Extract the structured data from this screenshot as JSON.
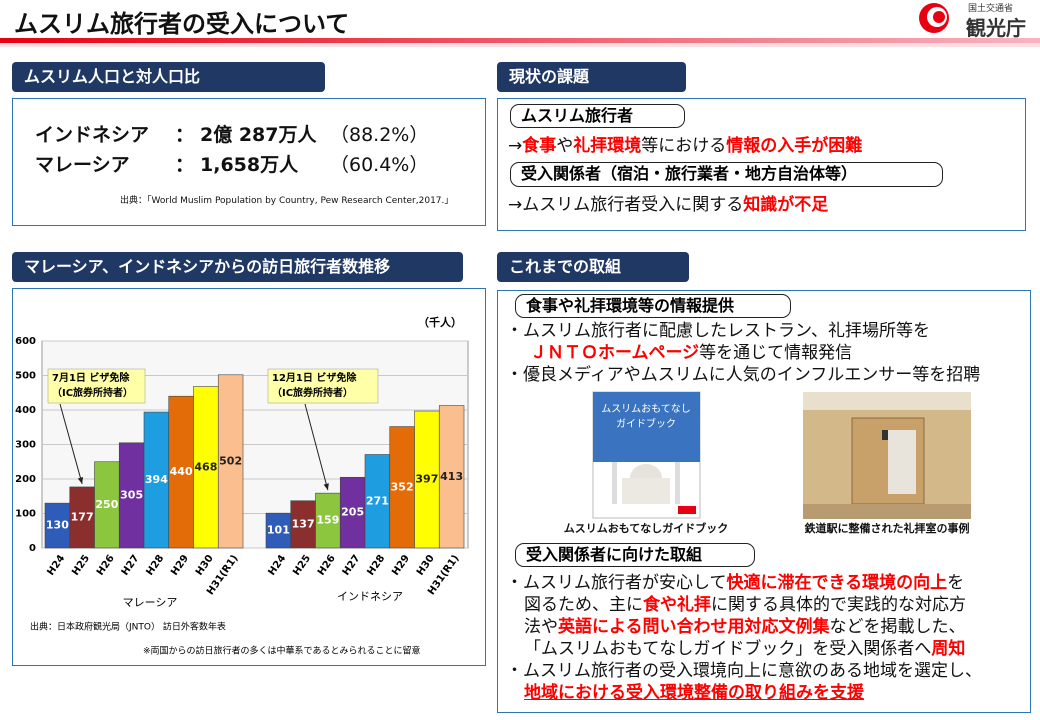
{
  "header": {
    "title": "ムスリム旅行者の受入について",
    "logo_top": "国土交通省",
    "logo_main": "観光庁"
  },
  "population": {
    "heading": "ムスリム人口と対人口比",
    "rows": [
      [
        "インドネシア",
        "：",
        "2億 287万人",
        "（88.2%）"
      ],
      [
        "マレーシア",
        "：",
        "1,658万人",
        "（60.4%）"
      ]
    ],
    "source": "出典：「World Muslim Population  by Country, Pew Research Center,2017.」"
  },
  "issues": {
    "heading": "現状の課題",
    "groups": [
      {
        "label": "ムスリム旅行者",
        "line": [
          {
            "text": "→"
          },
          {
            "text": "食事",
            "color": "#ff0000"
          },
          {
            "text": "や"
          },
          {
            "text": "礼拝環境",
            "color": "#ff0000"
          },
          {
            "text": "等における"
          },
          {
            "text": "情報の入手が困難",
            "color": "#ff0000"
          }
        ]
      },
      {
        "label": "受入関係者（宿泊・旅行業者・地方自治体等）",
        "line": [
          {
            "text": "→ムスリム旅行者受入に関する"
          },
          {
            "text": "知識が不足",
            "color": "#ff0000"
          }
        ]
      }
    ]
  },
  "chart_data": {
    "type": "bar",
    "heading": "マレーシア、インドネシアからの訪日旅行者数推移",
    "unit": "（千人）",
    "categories": [
      "H24",
      "H25",
      "H26",
      "H27",
      "H28",
      "H29",
      "H30",
      "H31(R1)"
    ],
    "colors": [
      "#2e5cb8",
      "#8b2e2e",
      "#8cc63f",
      "#7030a0",
      "#1e9de0",
      "#e36c09",
      "#ffff00",
      "#fbbf8f"
    ],
    "series": [
      {
        "name": "マレーシア",
        "values": [
          130,
          177,
          250,
          305,
          394,
          440,
          468,
          502
        ]
      },
      {
        "name": "インドネシア",
        "values": [
          101,
          137,
          159,
          205,
          271,
          352,
          397,
          413
        ]
      }
    ],
    "ylim": [
      0,
      600
    ],
    "yticks": [
      0,
      100,
      200,
      300,
      400,
      500,
      600
    ],
    "grid": true,
    "annotations": [
      {
        "lines": [
          "7月1日 ビザ免除",
          "（IC旅券所持者）"
        ]
      },
      {
        "lines": [
          "12月1日 ビザ免除",
          "（IC旅券所持者）"
        ]
      }
    ],
    "source": "出典：日本政府観光局（JNTO） 訪日外客数年表",
    "note": "※両国からの訪日旅行者の多くは中華系であるとみられることに留意"
  },
  "efforts": {
    "heading": "これまでの取組",
    "groups": [
      {
        "label": "食事や礼拝環境等の情報提供",
        "items": [
          {
            "lines": [
              [
                {
                  "text": "・ムスリム旅行者に配慮したレストラン、礼拝場所等を"
                }
              ],
              [
                {
                  "text": "ＪＮＴＯホームページ",
                  "color": "#ff0000"
                },
                {
                  "text": "等を通じて情報発信"
                }
              ]
            ]
          },
          {
            "lines": [
              [
                {
                  "text": "・優良メディアやムスリムに人気のインフルエンサー等を招聘"
                }
              ]
            ]
          }
        ]
      },
      {
        "label": "受入関係者に向けた取組",
        "items": [
          {
            "lines": [
              [
                {
                  "text": "・ムスリム旅行者が安心して"
                },
                {
                  "text": "快適に滞在できる環境の向上",
                  "color": "#ff0000"
                },
                {
                  "text": "を"
                }
              ],
              [
                {
                  "text": "図るため、主に"
                },
                {
                  "text": "食や礼拝",
                  "color": "#ff0000"
                },
                {
                  "text": "に関する具体的で実践的な対応方"
                }
              ],
              [
                {
                  "text": "法や"
                },
                {
                  "text": "英語による問い合わせ用対応文例集",
                  "color": "#ff0000"
                },
                {
                  "text": "などを掲載した、"
                }
              ],
              [
                {
                  "text": "「ムスリムおもてなしガイドブック」を受入関係者へ"
                },
                {
                  "text": "周知",
                  "color": "#ff0000"
                }
              ]
            ]
          },
          {
            "lines": [
              [
                {
                  "text": "・ムスリム旅行者の受入環境向上に意欲のある地域を選定し、"
                }
              ],
              [
                {
                  "text": "地域における受入環境整備の取り組みを支援",
                  "color": "#ff0000",
                  "underline": true
                }
              ]
            ]
          }
        ]
      }
    ],
    "images": [
      {
        "cover": [
          "ムスリムおもてなし",
          "ガイドブック"
        ],
        "caption": "ムスリムおもてなしガイドブック"
      },
      {
        "caption": "鉄道駅に整備された礼拝室の事例"
      }
    ]
  }
}
